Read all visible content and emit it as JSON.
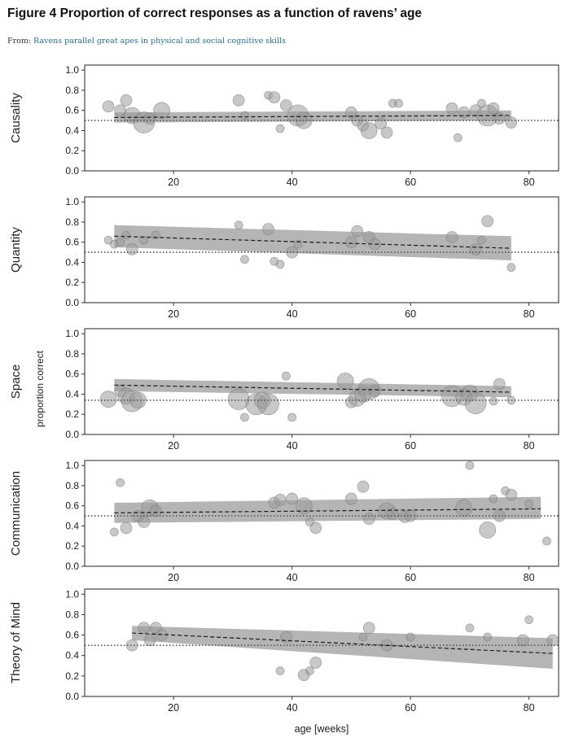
{
  "header": {
    "figure_title": "Figure 4 Proportion of correct responses as a function of ravens’ age",
    "from_prefix": "From:",
    "from_link": "Ravens parallel great apes in physical and social cognitive skills"
  },
  "colors": {
    "points": "#9a9a9a",
    "ribbon": "#a8a8a8",
    "trend": "#1a1a1a",
    "chance_line": "#555555",
    "frame": "#222222"
  },
  "chart_data": {
    "type": "scatter",
    "shared_xlabel": "age [weeks]",
    "shared_ylabel": "proportion correct",
    "xlim": [
      5,
      85
    ],
    "ylim": [
      0,
      1.05
    ],
    "xticks": [
      20,
      40,
      60,
      80
    ],
    "yticks": [
      0.0,
      0.2,
      0.4,
      0.6,
      0.8,
      1.0
    ],
    "yticks_labels": [
      "0.0",
      "0.2",
      "0.4",
      "0.6",
      "0.8",
      "1.0"
    ],
    "legend": "none",
    "panels": [
      {
        "strip_label": "Causality",
        "chance": 0.5,
        "trend": {
          "x": [
            10,
            77
          ],
          "y": [
            0.53,
            0.55
          ]
        },
        "band": {
          "lower": [
            0.48,
            0.5
          ],
          "upper": [
            0.58,
            0.6
          ]
        },
        "points": [
          {
            "x": 9,
            "y": 0.64,
            "size": 2
          },
          {
            "x": 11,
            "y": 0.6,
            "size": 2
          },
          {
            "x": 12,
            "y": 0.7,
            "size": 2
          },
          {
            "x": 13,
            "y": 0.55,
            "size": 3
          },
          {
            "x": 15,
            "y": 0.48,
            "size": 4
          },
          {
            "x": 16,
            "y": 0.52,
            "size": 2
          },
          {
            "x": 18,
            "y": 0.6,
            "size": 3
          },
          {
            "x": 31,
            "y": 0.7,
            "size": 2
          },
          {
            "x": 32,
            "y": 0.55,
            "size": 1
          },
          {
            "x": 36,
            "y": 0.75,
            "size": 1
          },
          {
            "x": 37,
            "y": 0.73,
            "size": 2
          },
          {
            "x": 38,
            "y": 0.42,
            "size": 1
          },
          {
            "x": 39,
            "y": 0.65,
            "size": 2
          },
          {
            "x": 41,
            "y": 0.55,
            "size": 4
          },
          {
            "x": 42,
            "y": 0.5,
            "size": 3
          },
          {
            "x": 50,
            "y": 0.58,
            "size": 2
          },
          {
            "x": 51,
            "y": 0.5,
            "size": 2
          },
          {
            "x": 52,
            "y": 0.45,
            "size": 2
          },
          {
            "x": 53,
            "y": 0.4,
            "size": 3
          },
          {
            "x": 55,
            "y": 0.47,
            "size": 2
          },
          {
            "x": 56,
            "y": 0.38,
            "size": 2
          },
          {
            "x": 57,
            "y": 0.67,
            "size": 1
          },
          {
            "x": 58,
            "y": 0.67,
            "size": 1
          },
          {
            "x": 67,
            "y": 0.62,
            "size": 2
          },
          {
            "x": 68,
            "y": 0.33,
            "size": 1
          },
          {
            "x": 69,
            "y": 0.58,
            "size": 2
          },
          {
            "x": 71,
            "y": 0.6,
            "size": 2
          },
          {
            "x": 72,
            "y": 0.67,
            "size": 1
          },
          {
            "x": 73,
            "y": 0.55,
            "size": 4
          },
          {
            "x": 74,
            "y": 0.62,
            "size": 2
          },
          {
            "x": 75,
            "y": 0.52,
            "size": 2
          },
          {
            "x": 77,
            "y": 0.48,
            "size": 2
          }
        ]
      },
      {
        "strip_label": "Quantity",
        "chance": 0.5,
        "trend": {
          "x": [
            10,
            77
          ],
          "y": [
            0.66,
            0.54
          ]
        },
        "band": {
          "lower": [
            0.55,
            0.42
          ],
          "upper": [
            0.77,
            0.66
          ]
        },
        "points": [
          {
            "x": 9,
            "y": 0.62,
            "size": 1
          },
          {
            "x": 10,
            "y": 0.58,
            "size": 1
          },
          {
            "x": 11,
            "y": 0.6,
            "size": 1
          },
          {
            "x": 12,
            "y": 0.67,
            "size": 1
          },
          {
            "x": 13,
            "y": 0.53,
            "size": 2
          },
          {
            "x": 15,
            "y": 0.62,
            "size": 1
          },
          {
            "x": 17,
            "y": 0.67,
            "size": 1
          },
          {
            "x": 31,
            "y": 0.77,
            "size": 1
          },
          {
            "x": 32,
            "y": 0.43,
            "size": 1
          },
          {
            "x": 36,
            "y": 0.73,
            "size": 2
          },
          {
            "x": 37,
            "y": 0.41,
            "size": 1
          },
          {
            "x": 38,
            "y": 0.38,
            "size": 1
          },
          {
            "x": 40,
            "y": 0.5,
            "size": 2
          },
          {
            "x": 41,
            "y": 0.58,
            "size": 1
          },
          {
            "x": 50,
            "y": 0.6,
            "size": 2
          },
          {
            "x": 51,
            "y": 0.71,
            "size": 2
          },
          {
            "x": 53,
            "y": 0.65,
            "size": 2
          },
          {
            "x": 54,
            "y": 0.58,
            "size": 2
          },
          {
            "x": 67,
            "y": 0.65,
            "size": 2
          },
          {
            "x": 71,
            "y": 0.53,
            "size": 2
          },
          {
            "x": 72,
            "y": 0.62,
            "size": 1
          },
          {
            "x": 73,
            "y": 0.81,
            "size": 2
          },
          {
            "x": 77,
            "y": 0.35,
            "size": 1
          }
        ]
      },
      {
        "strip_label": "Space",
        "chance": 0.34,
        "trend": {
          "x": [
            10,
            77
          ],
          "y": [
            0.49,
            0.42
          ]
        },
        "band": {
          "lower": [
            0.43,
            0.37
          ],
          "upper": [
            0.55,
            0.48
          ]
        },
        "points": [
          {
            "x": 9,
            "y": 0.35,
            "size": 3
          },
          {
            "x": 11,
            "y": 0.43,
            "size": 2
          },
          {
            "x": 12,
            "y": 0.38,
            "size": 3
          },
          {
            "x": 13,
            "y": 0.33,
            "size": 4
          },
          {
            "x": 14,
            "y": 0.34,
            "size": 3
          },
          {
            "x": 31,
            "y": 0.35,
            "size": 4
          },
          {
            "x": 32,
            "y": 0.17,
            "size": 1
          },
          {
            "x": 34,
            "y": 0.3,
            "size": 4
          },
          {
            "x": 35,
            "y": 0.34,
            "size": 3
          },
          {
            "x": 36,
            "y": 0.3,
            "size": 4
          },
          {
            "x": 39,
            "y": 0.58,
            "size": 1
          },
          {
            "x": 40,
            "y": 0.17,
            "size": 1
          },
          {
            "x": 49,
            "y": 0.53,
            "size": 3
          },
          {
            "x": 50,
            "y": 0.32,
            "size": 2
          },
          {
            "x": 51,
            "y": 0.36,
            "size": 3
          },
          {
            "x": 52,
            "y": 0.4,
            "size": 3
          },
          {
            "x": 53,
            "y": 0.45,
            "size": 4
          },
          {
            "x": 54,
            "y": 0.43,
            "size": 2
          },
          {
            "x": 67,
            "y": 0.38,
            "size": 4
          },
          {
            "x": 69,
            "y": 0.37,
            "size": 3
          },
          {
            "x": 70,
            "y": 0.41,
            "size": 3
          },
          {
            "x": 71,
            "y": 0.31,
            "size": 4
          },
          {
            "x": 74,
            "y": 0.33,
            "size": 1
          },
          {
            "x": 75,
            "y": 0.5,
            "size": 2
          },
          {
            "x": 77,
            "y": 0.34,
            "size": 1
          }
        ]
      },
      {
        "strip_label": "Communication",
        "chance": 0.5,
        "trend": {
          "x": [
            10,
            82
          ],
          "y": [
            0.53,
            0.57
          ]
        },
        "band": {
          "lower": [
            0.43,
            0.47
          ],
          "upper": [
            0.63,
            0.69
          ]
        },
        "points": [
          {
            "x": 10,
            "y": 0.34,
            "size": 1
          },
          {
            "x": 11,
            "y": 0.83,
            "size": 1
          },
          {
            "x": 12,
            "y": 0.38,
            "size": 2
          },
          {
            "x": 14,
            "y": 0.5,
            "size": 2
          },
          {
            "x": 15,
            "y": 0.44,
            "size": 2
          },
          {
            "x": 16,
            "y": 0.58,
            "size": 3
          },
          {
            "x": 17,
            "y": 0.55,
            "size": 2
          },
          {
            "x": 37,
            "y": 0.63,
            "size": 2
          },
          {
            "x": 38,
            "y": 0.66,
            "size": 2
          },
          {
            "x": 40,
            "y": 0.67,
            "size": 2
          },
          {
            "x": 42,
            "y": 0.6,
            "size": 3
          },
          {
            "x": 43,
            "y": 0.44,
            "size": 1
          },
          {
            "x": 44,
            "y": 0.38,
            "size": 2
          },
          {
            "x": 50,
            "y": 0.67,
            "size": 2
          },
          {
            "x": 52,
            "y": 0.79,
            "size": 2
          },
          {
            "x": 53,
            "y": 0.47,
            "size": 2
          },
          {
            "x": 56,
            "y": 0.55,
            "size": 3
          },
          {
            "x": 57,
            "y": 0.52,
            "size": 2
          },
          {
            "x": 59,
            "y": 0.49,
            "size": 2
          },
          {
            "x": 60,
            "y": 0.5,
            "size": 2
          },
          {
            "x": 69,
            "y": 0.58,
            "size": 3
          },
          {
            "x": 70,
            "y": 1.0,
            "size": 1
          },
          {
            "x": 73,
            "y": 0.36,
            "size": 3
          },
          {
            "x": 74,
            "y": 0.67,
            "size": 1
          },
          {
            "x": 75,
            "y": 0.5,
            "size": 2
          },
          {
            "x": 76,
            "y": 0.75,
            "size": 1
          },
          {
            "x": 77,
            "y": 0.71,
            "size": 2
          },
          {
            "x": 80,
            "y": 0.62,
            "size": 1
          },
          {
            "x": 83,
            "y": 0.25,
            "size": 1
          }
        ]
      },
      {
        "strip_label": "Theory of Mind",
        "chance": 0.5,
        "trend": {
          "x": [
            13,
            84
          ],
          "y": [
            0.62,
            0.42
          ]
        },
        "band": {
          "lower": [
            0.55,
            0.27
          ],
          "upper": [
            0.69,
            0.57
          ]
        },
        "points": [
          {
            "x": 13,
            "y": 0.5,
            "size": 2
          },
          {
            "x": 15,
            "y": 0.67,
            "size": 2
          },
          {
            "x": 16,
            "y": 0.55,
            "size": 2
          },
          {
            "x": 17,
            "y": 0.67,
            "size": 2
          },
          {
            "x": 18,
            "y": 0.6,
            "size": 2
          },
          {
            "x": 38,
            "y": 0.25,
            "size": 1
          },
          {
            "x": 39,
            "y": 0.58,
            "size": 2
          },
          {
            "x": 42,
            "y": 0.21,
            "size": 2
          },
          {
            "x": 43,
            "y": 0.25,
            "size": 1
          },
          {
            "x": 44,
            "y": 0.33,
            "size": 2
          },
          {
            "x": 52,
            "y": 0.58,
            "size": 1
          },
          {
            "x": 53,
            "y": 0.67,
            "size": 2
          },
          {
            "x": 56,
            "y": 0.5,
            "size": 2
          },
          {
            "x": 60,
            "y": 0.58,
            "size": 1
          },
          {
            "x": 70,
            "y": 0.67,
            "size": 1
          },
          {
            "x": 73,
            "y": 0.58,
            "size": 1
          },
          {
            "x": 79,
            "y": 0.55,
            "size": 2
          },
          {
            "x": 80,
            "y": 0.75,
            "size": 1
          },
          {
            "x": 84,
            "y": 0.55,
            "size": 2
          }
        ]
      }
    ]
  }
}
